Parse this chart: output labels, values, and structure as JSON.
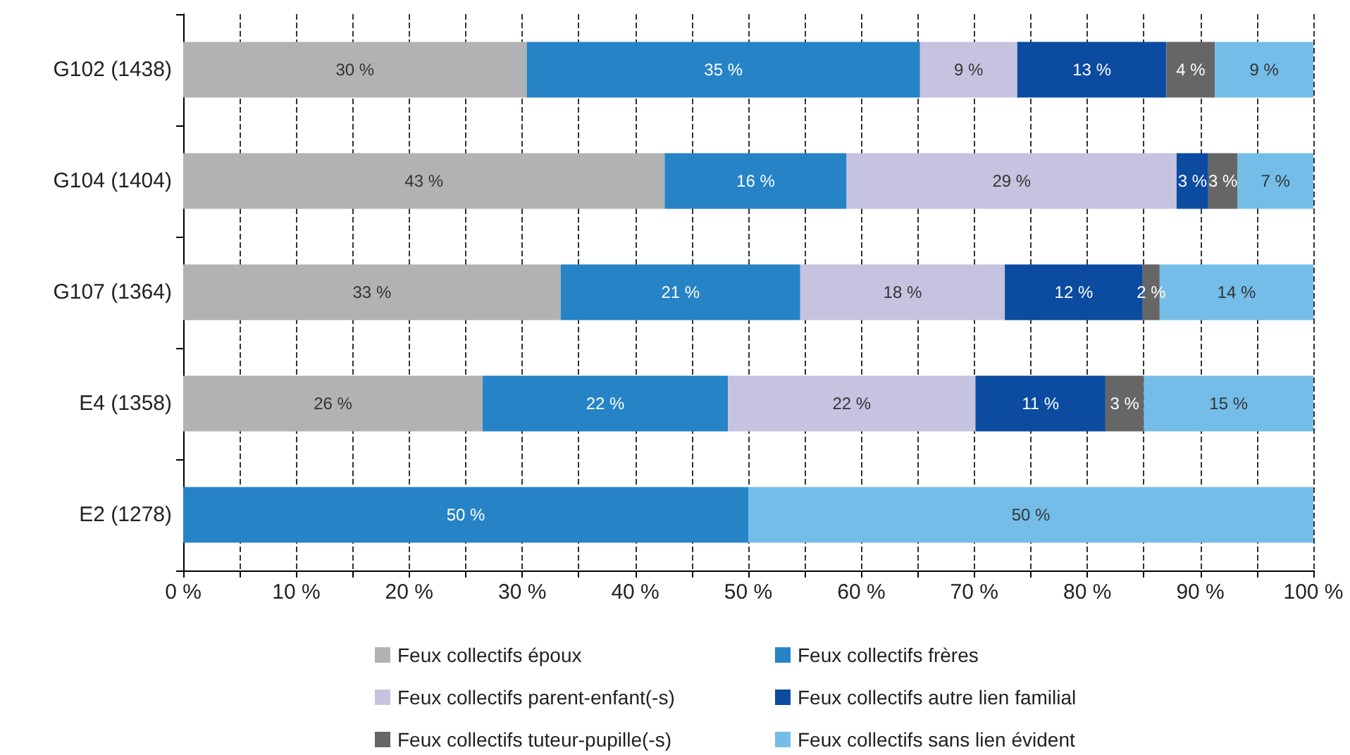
{
  "chart_data": {
    "type": "bar",
    "orientation": "horizontal",
    "stacked": true,
    "categories": [
      "G102 (1438)",
      "G104 (1404)",
      "G107 (1364)",
      "E4 (1358)",
      "E2 (1278)"
    ],
    "series": [
      {
        "name": "Feux collectifs époux",
        "color": "#b1b2b4",
        "values": [
          30.4,
          42.6,
          33.4,
          26.5,
          null
        ],
        "value_labels": [
          "30 %",
          "43 %",
          "33 %",
          "26 %",
          null
        ]
      },
      {
        "name": "Feux collectifs frères",
        "color": "#2683c6",
        "values": [
          34.8,
          16.1,
          21.2,
          21.7,
          50
        ],
        "value_labels": [
          "35 %",
          "16 %",
          "21 %",
          "22 %",
          "50 %"
        ]
      },
      {
        "name": "Feux collectifs parent-enfant(-s)",
        "color": "#c6c3e1",
        "values": [
          8.6,
          29.2,
          18.1,
          21.9,
          null
        ],
        "value_labels": [
          "9 %",
          "29 %",
          "18 %",
          "22 %",
          null
        ]
      },
      {
        "name": "Feux collectifs autre lien familial",
        "color": "#0b4ba0",
        "values": [
          13.2,
          2.8,
          12.2,
          11.5,
          null
        ],
        "value_labels": [
          "13 %",
          "3 %",
          "12 %",
          "11 %",
          null
        ]
      },
      {
        "name": "Feux collectifs tuteur-pupille(-s)",
        "color": "#666666",
        "values": [
          4.3,
          2.6,
          1.5,
          3.4,
          null
        ],
        "value_labels": [
          "4 %",
          "3 %",
          "2 %",
          "3 %",
          null
        ]
      },
      {
        "name": "Feux collectifs sans lien évident",
        "color": "#74bde9",
        "values": [
          8.7,
          6.7,
          13.6,
          15.0,
          50
        ],
        "value_labels": [
          "9 %",
          "7 %",
          "14 %",
          "15 %",
          "50 %"
        ]
      }
    ],
    "xlim": [
      0,
      100
    ],
    "xticks": [
      {
        "value": 0,
        "label": "0 %"
      },
      {
        "value": 5,
        "label": null
      },
      {
        "value": 10,
        "label": "10 %"
      },
      {
        "value": 15,
        "label": null
      },
      {
        "value": 20,
        "label": "20 %"
      },
      {
        "value": 25,
        "label": null
      },
      {
        "value": 30,
        "label": "30 %"
      },
      {
        "value": 35,
        "label": null
      },
      {
        "value": 40,
        "label": "40 %"
      },
      {
        "value": 45,
        "label": null
      },
      {
        "value": 50,
        "label": "50 %"
      },
      {
        "value": 55,
        "label": null
      },
      {
        "value": 60,
        "label": "60 %"
      },
      {
        "value": 65,
        "label": null
      },
      {
        "value": 70,
        "label": "70 %"
      },
      {
        "value": 75,
        "label": null
      },
      {
        "value": 80,
        "label": "80 %"
      },
      {
        "value": 85,
        "label": null
      },
      {
        "value": 90,
        "label": "90 %"
      },
      {
        "value": 95,
        "label": null
      },
      {
        "value": 100,
        "label": "100 %"
      }
    ],
    "grid": "x",
    "legend": "bottom"
  }
}
